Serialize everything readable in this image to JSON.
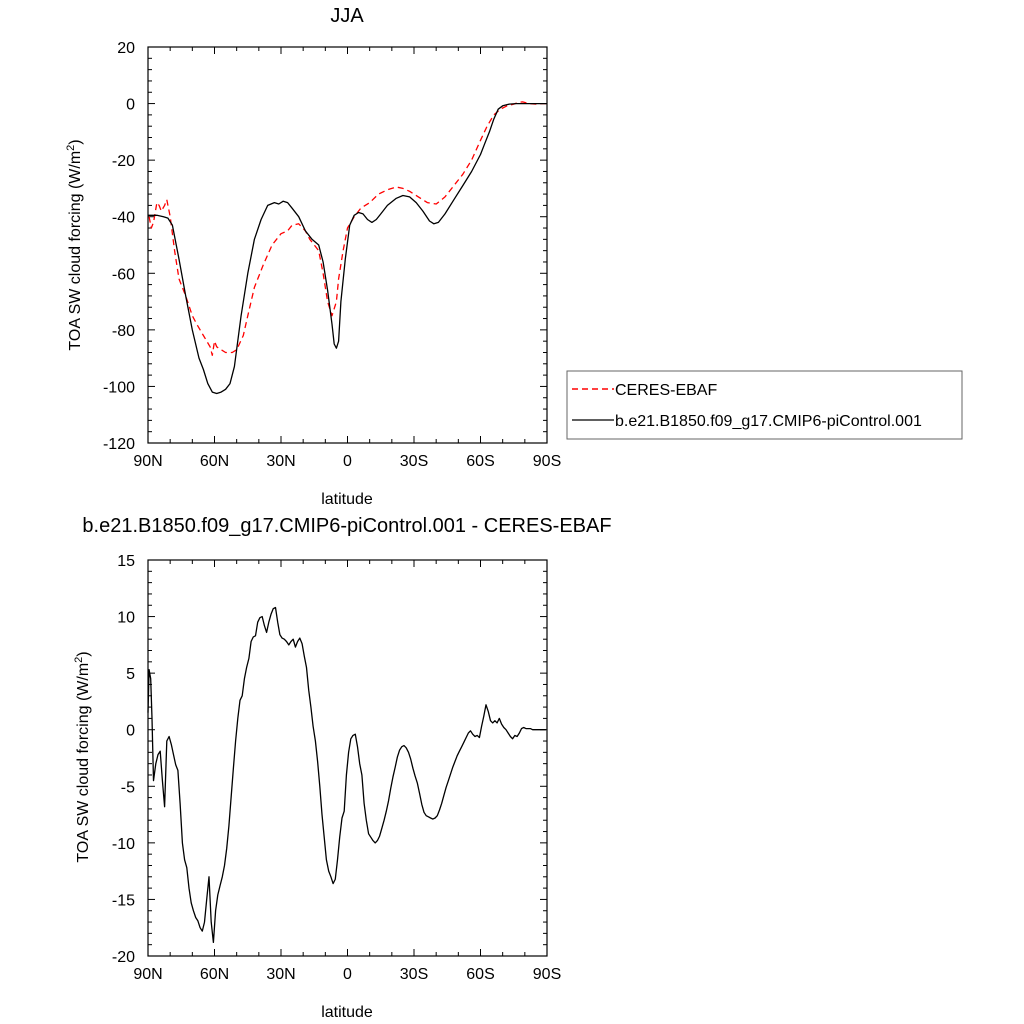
{
  "chart_data": [
    {
      "type": "line",
      "title": "JJA",
      "xlabel": "latitude",
      "ylabel": "TOA SW cloud forcing (W/m²)",
      "ylabel_main": "TOA SW cloud forcing (W/m",
      "ylabel_sup": "2",
      "ylabel_tail": ")",
      "xlim": [
        90,
        -90
      ],
      "ylim": [
        -120,
        20
      ],
      "x_ticks": [
        90,
        60,
        30,
        0,
        -30,
        -60,
        -90
      ],
      "x_tick_labels": [
        "90N",
        "60N",
        "30N",
        "0",
        "30S",
        "60S",
        "90S"
      ],
      "y_ticks": [
        20,
        0,
        -20,
        -40,
        -60,
        -80,
        -100,
        -120
      ],
      "y_tick_labels": [
        "20",
        "0",
        "-20",
        "-40",
        "-60",
        "-80",
        "-100",
        "-120"
      ],
      "legend_placement": "right",
      "series": [
        {
          "name": "CERES-EBAF",
          "color": "#ff0000",
          "dash": "dashed",
          "x": [
            89.5,
            88.5,
            87.5,
            86,
            85,
            84,
            82.5,
            81.5,
            80,
            78,
            76,
            73,
            70,
            68,
            65,
            62,
            61,
            60,
            59,
            57,
            55,
            52,
            50,
            47,
            45,
            42,
            38,
            34,
            30,
            27,
            25,
            22,
            19,
            17,
            15,
            13,
            11,
            9,
            7,
            5,
            4,
            2,
            0,
            -3,
            -6,
            -10,
            -14,
            -18,
            -22,
            -25,
            -28,
            -32,
            -36,
            -40,
            -44,
            -48,
            -52,
            -56,
            -60,
            -63,
            -66,
            -69,
            -72,
            -75,
            -77,
            -79,
            -82,
            -85,
            -88,
            -90
          ],
          "y": [
            -40,
            -44,
            -42,
            -35,
            -36,
            -38,
            -36,
            -34,
            -40,
            -52,
            -62,
            -68,
            -75,
            -78,
            -82,
            -86,
            -89,
            -84,
            -86,
            -87,
            -88,
            -88,
            -87,
            -82,
            -75,
            -65,
            -57,
            -50,
            -46,
            -45,
            -43,
            -42.5,
            -45,
            -48,
            -50,
            -52,
            -60,
            -70,
            -75,
            -70,
            -62,
            -52,
            -44,
            -40,
            -37,
            -35,
            -32,
            -30.5,
            -29.5,
            -30,
            -31,
            -33,
            -35,
            -35.5,
            -33,
            -29,
            -25,
            -20,
            -13,
            -8,
            -4,
            -2,
            -0.8,
            -0.2,
            0.4,
            0.6,
            0,
            -0.2,
            0,
            0
          ],
          "y_note": "values read from graph"
        },
        {
          "name": "b.e21.B1850.f09_g17.CMIP6-piControl.001",
          "color": "#000000",
          "dash": "solid",
          "x": [
            90,
            86,
            83,
            81,
            79,
            76,
            73,
            70,
            67,
            65,
            63,
            61,
            59,
            57,
            55,
            53,
            51,
            48,
            45,
            42,
            39,
            36,
            33,
            31,
            29,
            27,
            25,
            22,
            19,
            16,
            13,
            11,
            9,
            7,
            6,
            5,
            4,
            3,
            1,
            -1,
            -3,
            -5,
            -7,
            -9,
            -11,
            -13,
            -15,
            -18,
            -22,
            -25,
            -28,
            -31,
            -34,
            -37,
            -39,
            -41,
            -44,
            -48,
            -52,
            -56,
            -60,
            -62,
            -64,
            -66,
            -68,
            -70,
            -73,
            -76,
            -80,
            -85,
            -90
          ],
          "y": [
            -39.5,
            -39.5,
            -40,
            -40.5,
            -43,
            -55,
            -68,
            -80,
            -90,
            -94,
            -99,
            -102,
            -102.5,
            -102,
            -101,
            -99,
            -93,
            -75,
            -60,
            -48,
            -41,
            -36,
            -35,
            -35.5,
            -34.5,
            -35,
            -37,
            -40,
            -45,
            -48,
            -50,
            -56,
            -66,
            -78,
            -85,
            -86.5,
            -84,
            -70,
            -55,
            -43,
            -39.5,
            -38.5,
            -39,
            -41,
            -42,
            -41,
            -39,
            -36,
            -33.5,
            -32.5,
            -33,
            -35,
            -38,
            -41.5,
            -42.5,
            -42,
            -39,
            -34,
            -29,
            -24,
            -18,
            -14,
            -10,
            -5.5,
            -2,
            -0.8,
            -0.2,
            0,
            0,
            0,
            0
          ],
          "y_note": "values read from graph"
        }
      ]
    },
    {
      "type": "line",
      "title": "b.e21.B1850.f09_g17.CMIP6-piControl.001 - CERES-EBAF",
      "xlabel": "latitude",
      "ylabel": "TOA SW cloud forcing (W/m²)",
      "ylabel_main": "TOA SW cloud forcing (W/m",
      "ylabel_sup": "2",
      "ylabel_tail": ")",
      "xlim": [
        90,
        -90
      ],
      "ylim": [
        -20,
        15
      ],
      "x_ticks": [
        90,
        60,
        30,
        0,
        -30,
        -60,
        -90
      ],
      "x_tick_labels": [
        "90N",
        "60N",
        "30N",
        "0",
        "30S",
        "60S",
        "90S"
      ],
      "y_ticks": [
        15,
        10,
        5,
        0,
        -5,
        -10,
        -15,
        -20
      ],
      "y_tick_labels": [
        "15",
        "10",
        "5",
        "0",
        "-5",
        "-10",
        "-15",
        "-20"
      ],
      "series": [
        {
          "color": "#000000",
          "dash": "solid",
          "x": [
            90,
            89.5,
            88.8,
            88.2,
            87.5,
            86.5,
            85.5,
            84.5,
            83.5,
            82.5,
            81.5,
            80.5,
            79.5,
            78.5,
            77.5,
            76.5,
            75.5,
            74.5,
            73.5,
            72.5,
            71.5,
            70.5,
            69.5,
            68.5,
            67.5,
            66.5,
            65.5,
            64.5,
            63.5,
            62.5,
            61.5,
            60.5,
            59.5,
            58.5,
            57.5,
            56.5,
            55.5,
            54.5,
            53.5,
            52.5,
            51.5,
            50.5,
            49.5,
            48.5,
            47.5,
            46.5,
            45.5,
            44.5,
            43.5,
            42.5,
            41.5,
            40.5,
            39.5,
            38.5,
            37.5,
            36.5,
            35.5,
            34.5,
            33.5,
            32.5,
            31.5,
            30.5,
            29.5,
            28.5,
            27.5,
            26.5,
            25.5,
            24.5,
            23.5,
            22.5,
            21.5,
            20.5,
            19.5,
            18.5,
            17.5,
            16.5,
            15.5,
            14.5,
            13.5,
            12.5,
            11.5,
            10.5,
            9.5,
            8.5,
            7.5,
            6.5,
            5.5,
            4.5,
            3.5,
            2.5,
            1.5,
            0.5,
            -0.5,
            -1.5,
            -2.5,
            -3.5,
            -4.5,
            -5.5,
            -6.5,
            -7.5,
            -8.5,
            -9.5,
            -10.5,
            -11.5,
            -12.5,
            -13.5,
            -14.5,
            -15.5,
            -16.5,
            -17.5,
            -18.5,
            -19.5,
            -20.5,
            -21.5,
            -22.5,
            -23.5,
            -24.5,
            -25.5,
            -26.5,
            -27.5,
            -28.5,
            -29.5,
            -30.5,
            -31.5,
            -32.5,
            -33.5,
            -34.5,
            -35.5,
            -36.5,
            -37.5,
            -38.5,
            -39.5,
            -40.5,
            -41.5,
            -42.5,
            -43.5,
            -44.5,
            -45.5,
            -46.5,
            -47.5,
            -48.5,
            -49.5,
            -50.5,
            -51.5,
            -52.5,
            -53.5,
            -54.5,
            -55.5,
            -56.5,
            -57.5,
            -58.5,
            -59.5,
            -60.5,
            -61.5,
            -62.5,
            -63.5,
            -64.5,
            -65.5,
            -66.5,
            -67.5,
            -68.5,
            -69.5,
            -70.5,
            -71.5,
            -72.5,
            -73.5,
            -74.5,
            -75.5,
            -76.5,
            -77.5,
            -78.5,
            -79.5,
            -80.5,
            -81.5,
            -82.5,
            -83.5,
            -84.5,
            -85.5,
            -86.5,
            -87.5,
            -88.5,
            -89.5
          ],
          "y": [
            1.5,
            5.3,
            4.5,
            1.0,
            -4.5,
            -3.0,
            -2.2,
            -1.9,
            -4.5,
            -6.8,
            -1.0,
            -0.6,
            -1.3,
            -2.2,
            -3.1,
            -3.6,
            -6.5,
            -10.0,
            -11.5,
            -12.2,
            -14.0,
            -15.3,
            -16.0,
            -16.6,
            -16.9,
            -17.5,
            -17.8,
            -17.0,
            -15.0,
            -13.0,
            -17.0,
            -18.8,
            -16.0,
            -14.6,
            -13.8,
            -13.0,
            -12.0,
            -10.5,
            -8.5,
            -6.0,
            -3.5,
            -1.0,
            1.0,
            2.6,
            3.0,
            4.5,
            5.5,
            6.3,
            7.8,
            8.2,
            8.3,
            9.5,
            9.9,
            10.0,
            9.2,
            8.6,
            9.5,
            10.2,
            10.7,
            10.8,
            9.5,
            8.4,
            8.1,
            8.0,
            7.8,
            7.5,
            7.8,
            8.0,
            7.3,
            7.8,
            8.1,
            7.6,
            6.5,
            5.5,
            3.5,
            2.0,
            0.3,
            -1.0,
            -2.8,
            -5.0,
            -7.5,
            -9.5,
            -11.5,
            -12.5,
            -13.0,
            -13.6,
            -13.2,
            -11.5,
            -9.5,
            -7.8,
            -7.2,
            -4.0,
            -2.0,
            -0.8,
            -0.5,
            -0.4,
            -1.5,
            -3.0,
            -4.0,
            -6.5,
            -8.0,
            -9.2,
            -9.5,
            -9.8,
            -10.0,
            -9.8,
            -9.4,
            -8.7,
            -8.0,
            -7.2,
            -6.3,
            -5.2,
            -4.2,
            -3.3,
            -2.4,
            -1.8,
            -1.5,
            -1.4,
            -1.6,
            -2.0,
            -2.6,
            -3.4,
            -4.1,
            -4.7,
            -5.6,
            -6.6,
            -7.3,
            -7.6,
            -7.7,
            -7.8,
            -7.9,
            -7.8,
            -7.6,
            -7.1,
            -6.5,
            -5.8,
            -5.1,
            -4.5,
            -3.9,
            -3.3,
            -2.8,
            -2.3,
            -1.9,
            -1.5,
            -1.1,
            -0.7,
            -0.3,
            -0.1,
            -0.4,
            -0.6,
            -0.5,
            -0.7,
            0.3,
            1.2,
            2.2,
            1.6,
            0.8,
            0.6,
            0.8,
            0.6,
            1.0,
            0.5,
            0.2,
            0.0,
            -0.3,
            -0.6,
            -0.8,
            -0.5,
            -0.6,
            -0.3,
            0.1,
            0.2,
            0.1,
            0.1,
            0.1,
            0.0,
            0.0,
            0.0,
            0.0,
            0.0,
            0.0,
            0.0
          ],
          "y_note": "values read from graph"
        }
      ]
    }
  ],
  "legend": {
    "items": [
      {
        "label": "CERES-EBAF",
        "color": "#ff0000",
        "dash": "dashed"
      },
      {
        "label": "b.e21.B1850.f09_g17.CMIP6-piControl.001",
        "color": "#000000",
        "dash": "solid"
      }
    ]
  }
}
